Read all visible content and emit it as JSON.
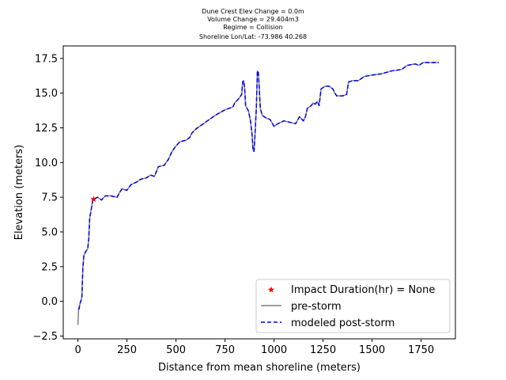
{
  "chart_data": {
    "type": "line",
    "title_lines": [
      "Dune Crest Elev Change = 0.0m",
      "Volume Change = 29.404m3",
      "Regime = Collision",
      "Shoreline Lon/Lat: -73.986 40.268"
    ],
    "xlabel": "Distance from mean shoreline (meters)",
    "ylabel": "Elevation (meters)",
    "xlim": [
      -75,
      1925
    ],
    "ylim": [
      -2.7,
      18.4
    ],
    "xticks": [
      0,
      250,
      500,
      750,
      1000,
      1250,
      1500,
      1750
    ],
    "yticks": [
      -2.5,
      0.0,
      2.5,
      5.0,
      7.5,
      10.0,
      12.5,
      15.0,
      17.5
    ],
    "xtick_labels": [
      "0",
      "250",
      "500",
      "750",
      "1000",
      "1250",
      "1500",
      "1750"
    ],
    "ytick_labels": [
      "−2.5",
      "0.0",
      "2.5",
      "5.0",
      "7.5",
      "10.0",
      "12.5",
      "15.0",
      "17.5"
    ],
    "legend_position": "lower-right",
    "colors": {
      "pre_storm": "#808080",
      "post_storm": "#0000ff",
      "impact": "#ff0000"
    },
    "impact_point": {
      "label": "Impact Duration(hr) = None",
      "x": 80,
      "y": 7.35
    },
    "series": [
      {
        "name": "pre-storm",
        "style": "solid",
        "points": [
          [
            0,
            -1.7
          ],
          [
            3,
            -0.6
          ],
          [
            10,
            -0.2
          ],
          [
            20,
            0.3
          ],
          [
            25,
            2.4
          ],
          [
            30,
            3.3
          ],
          [
            40,
            3.6
          ],
          [
            50,
            3.8
          ],
          [
            55,
            4.5
          ],
          [
            60,
            6.0
          ],
          [
            70,
            6.8
          ],
          [
            75,
            7.3
          ],
          [
            85,
            7.4
          ],
          [
            100,
            7.5
          ],
          [
            120,
            7.3
          ],
          [
            140,
            7.6
          ],
          [
            165,
            7.6
          ],
          [
            200,
            7.5
          ],
          [
            210,
            7.8
          ],
          [
            225,
            8.1
          ],
          [
            250,
            8.0
          ],
          [
            270,
            8.4
          ],
          [
            300,
            8.6
          ],
          [
            320,
            8.8
          ],
          [
            350,
            8.9
          ],
          [
            370,
            9.1
          ],
          [
            390,
            9.0
          ],
          [
            410,
            9.7
          ],
          [
            440,
            9.8
          ],
          [
            460,
            10.2
          ],
          [
            480,
            10.8
          ],
          [
            500,
            11.2
          ],
          [
            520,
            11.5
          ],
          [
            550,
            11.6
          ],
          [
            570,
            11.8
          ],
          [
            580,
            12.1
          ],
          [
            600,
            12.4
          ],
          [
            650,
            12.9
          ],
          [
            700,
            13.4
          ],
          [
            750,
            13.8
          ],
          [
            790,
            14.0
          ],
          [
            800,
            14.3
          ],
          [
            820,
            14.6
          ],
          [
            835,
            14.9
          ],
          [
            840,
            15.8
          ],
          [
            845,
            15.9
          ],
          [
            850,
            15.4
          ],
          [
            855,
            14.1
          ],
          [
            870,
            13.7
          ],
          [
            880,
            13.0
          ],
          [
            888,
            12.0
          ],
          [
            893,
            10.9
          ],
          [
            898,
            10.8
          ],
          [
            903,
            12.0
          ],
          [
            910,
            14.0
          ],
          [
            915,
            16.6
          ],
          [
            920,
            16.5
          ],
          [
            925,
            15.3
          ],
          [
            930,
            13.9
          ],
          [
            940,
            13.4
          ],
          [
            960,
            13.2
          ],
          [
            980,
            13.1
          ],
          [
            1000,
            12.6
          ],
          [
            1020,
            12.8
          ],
          [
            1050,
            13.0
          ],
          [
            1080,
            12.9
          ],
          [
            1110,
            12.8
          ],
          [
            1130,
            13.3
          ],
          [
            1150,
            13.0
          ],
          [
            1160,
            13.3
          ],
          [
            1170,
            13.9
          ],
          [
            1190,
            14.1
          ],
          [
            1200,
            14.3
          ],
          [
            1210,
            14.2
          ],
          [
            1220,
            14.4
          ],
          [
            1230,
            14.1
          ],
          [
            1240,
            15.3
          ],
          [
            1260,
            15.5
          ],
          [
            1280,
            15.5
          ],
          [
            1290,
            15.4
          ],
          [
            1300,
            15.3
          ],
          [
            1310,
            15.0
          ],
          [
            1320,
            14.8
          ],
          [
            1350,
            14.8
          ],
          [
            1370,
            14.9
          ],
          [
            1380,
            15.8
          ],
          [
            1400,
            15.9
          ],
          [
            1430,
            15.9
          ],
          [
            1440,
            16.0
          ],
          [
            1460,
            16.2
          ],
          [
            1500,
            16.3
          ],
          [
            1550,
            16.4
          ],
          [
            1600,
            16.6
          ],
          [
            1650,
            16.7
          ],
          [
            1680,
            17.0
          ],
          [
            1720,
            17.1
          ],
          [
            1740,
            17.0
          ],
          [
            1760,
            17.2
          ],
          [
            1800,
            17.2
          ],
          [
            1840,
            17.2
          ]
        ]
      },
      {
        "name": "modeled post-storm",
        "style": "dashed",
        "points": [
          [
            5,
            -0.6
          ],
          [
            10,
            -0.2
          ],
          [
            20,
            0.3
          ],
          [
            25,
            2.4
          ],
          [
            30,
            3.3
          ],
          [
            40,
            3.6
          ],
          [
            50,
            3.8
          ],
          [
            55,
            4.5
          ],
          [
            60,
            6.0
          ],
          [
            70,
            6.8
          ],
          [
            75,
            7.3
          ],
          [
            85,
            7.4
          ],
          [
            100,
            7.5
          ],
          [
            120,
            7.3
          ],
          [
            140,
            7.6
          ],
          [
            165,
            7.6
          ],
          [
            200,
            7.5
          ],
          [
            210,
            7.8
          ],
          [
            225,
            8.1
          ],
          [
            250,
            8.0
          ],
          [
            270,
            8.4
          ],
          [
            300,
            8.6
          ],
          [
            320,
            8.8
          ],
          [
            350,
            8.9
          ],
          [
            370,
            9.1
          ],
          [
            390,
            9.0
          ],
          [
            410,
            9.7
          ],
          [
            440,
            9.8
          ],
          [
            460,
            10.2
          ],
          [
            480,
            10.8
          ],
          [
            500,
            11.2
          ],
          [
            520,
            11.5
          ],
          [
            550,
            11.6
          ],
          [
            570,
            11.8
          ],
          [
            580,
            12.1
          ],
          [
            600,
            12.4
          ],
          [
            650,
            12.9
          ],
          [
            700,
            13.4
          ],
          [
            750,
            13.8
          ],
          [
            790,
            14.0
          ],
          [
            800,
            14.3
          ],
          [
            820,
            14.6
          ],
          [
            835,
            14.9
          ],
          [
            840,
            15.8
          ],
          [
            845,
            15.9
          ],
          [
            850,
            15.4
          ],
          [
            855,
            14.1
          ],
          [
            870,
            13.7
          ],
          [
            880,
            13.0
          ],
          [
            888,
            12.0
          ],
          [
            893,
            10.9
          ],
          [
            898,
            10.8
          ],
          [
            903,
            12.0
          ],
          [
            910,
            14.0
          ],
          [
            915,
            16.6
          ],
          [
            920,
            16.5
          ],
          [
            925,
            15.3
          ],
          [
            930,
            13.9
          ],
          [
            940,
            13.4
          ],
          [
            960,
            13.2
          ],
          [
            980,
            13.1
          ],
          [
            1000,
            12.6
          ],
          [
            1020,
            12.8
          ],
          [
            1050,
            13.0
          ],
          [
            1080,
            12.9
          ],
          [
            1110,
            12.8
          ],
          [
            1130,
            13.3
          ],
          [
            1150,
            13.0
          ],
          [
            1160,
            13.3
          ],
          [
            1170,
            13.9
          ],
          [
            1190,
            14.1
          ],
          [
            1200,
            14.3
          ],
          [
            1210,
            14.2
          ],
          [
            1220,
            14.4
          ],
          [
            1230,
            14.1
          ],
          [
            1240,
            15.3
          ],
          [
            1260,
            15.5
          ],
          [
            1280,
            15.5
          ],
          [
            1290,
            15.4
          ],
          [
            1300,
            15.3
          ],
          [
            1310,
            15.0
          ],
          [
            1320,
            14.8
          ],
          [
            1350,
            14.8
          ],
          [
            1370,
            14.9
          ],
          [
            1380,
            15.8
          ],
          [
            1400,
            15.9
          ],
          [
            1430,
            15.9
          ],
          [
            1440,
            16.0
          ],
          [
            1460,
            16.2
          ],
          [
            1500,
            16.3
          ],
          [
            1550,
            16.4
          ],
          [
            1600,
            16.6
          ],
          [
            1650,
            16.7
          ],
          [
            1680,
            17.0
          ],
          [
            1720,
            17.1
          ],
          [
            1740,
            17.0
          ],
          [
            1760,
            17.2
          ],
          [
            1800,
            17.2
          ],
          [
            1840,
            17.2
          ]
        ]
      }
    ]
  }
}
